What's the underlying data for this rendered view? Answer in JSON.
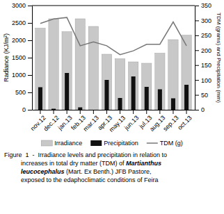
{
  "chart_data": {
    "type": "bar",
    "categories": [
      "nov.12",
      "dec.12",
      "jan.13",
      "feb.13",
      "mar.13",
      "apr.13",
      "may.13",
      "jun.13",
      "jul.13",
      "aug.13",
      "sep.13",
      "oct.13"
    ],
    "series": [
      {
        "name": "Irradiance",
        "color": "#c8c8c8",
        "values": [
          2350,
          2620,
          2250,
          2620,
          2400,
          1600,
          1470,
          1380,
          1340,
          1630,
          2020,
          2150
        ]
      },
      {
        "name": "Precipitation",
        "color": "#111111",
        "values": [
          650,
          30,
          1060,
          70,
          0,
          860,
          340,
          960,
          660,
          590,
          330,
          720
        ]
      },
      {
        "name": "TDM (g)",
        "color": "#777777",
        "type": "line",
        "axis": "y2",
        "values": [
          290,
          305,
          310,
          215,
          228,
          215,
          185,
          198,
          220,
          220,
          295,
          215
        ]
      }
    ],
    "ylabel": "Radiance (KJ/m²)",
    "y2label": "TDM (grams) and Precipitation (mm)",
    "ylim": [
      0,
      3000
    ],
    "yticks": [
      0,
      500,
      1000,
      1500,
      2000,
      2500,
      3000
    ],
    "y2lim": [
      0,
      350
    ],
    "y2ticks": [
      0,
      50,
      100,
      150,
      200,
      250,
      300,
      350
    ],
    "grid": false,
    "legend": "bottom",
    "annotations": [
      [
        "Figure  1  -  Irradiance levels and precipitation in relation to"
      ],
      [
        "increases in total dry matter (TDM) of ",
        "Martianthus"
      ],
      [
        "leucocephalus",
        " (Mart. Ex Benth.) JFB Pastore,"
      ],
      [
        "exposed to the edaphoclimatic conditions of Feira"
      ]
    ]
  }
}
